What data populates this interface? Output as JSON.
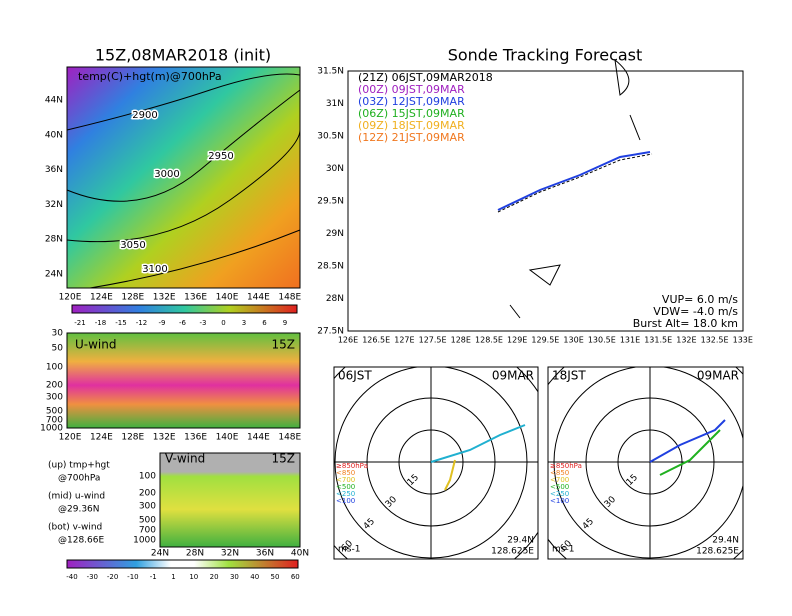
{
  "left_top": {
    "title": "15Z,08MAR2018 (init)",
    "label": "temp(C)+hgt(m)@700hPa",
    "lat_labels": [
      "44N",
      "40N",
      "36N",
      "32N",
      "28N",
      "24N"
    ],
    "lon_labels": [
      "120E",
      "124E",
      "128E",
      "132E",
      "136E",
      "140E",
      "144E",
      "148E"
    ],
    "contour_labels": [
      "2900",
      "2950",
      "3000",
      "3050",
      "3100"
    ],
    "colorbar_labels": [
      "-21",
      "-18",
      "-15",
      "-12",
      "-9",
      "-6",
      "-3",
      "0",
      "3",
      "6",
      "9"
    ]
  },
  "u_wind": {
    "label": "U-wind",
    "time": "15Z",
    "p_labels": [
      "30",
      "50",
      "100",
      "200",
      "300",
      "500",
      "700",
      "1000"
    ],
    "lon_labels": [
      "120E",
      "124E",
      "128E",
      "132E",
      "136E",
      "140E",
      "144E",
      "148E"
    ]
  },
  "v_wind": {
    "label": "V-wind",
    "time": "15Z",
    "p_labels": [
      "100",
      "200",
      "300",
      "500",
      "700",
      "1000"
    ],
    "lat_labels": [
      "24N",
      "28N",
      "32N",
      "36N",
      "40N"
    ]
  },
  "notes": [
    "(up) tmp+hgt",
    "@700hPa",
    "(mid) u-wind",
    "@29.36N",
    "(bot) v-wind",
    "@128.66E"
  ],
  "bottom_colorbar": [
    "-40",
    "-30",
    "-20",
    "-10",
    "-1",
    "1",
    "10",
    "20",
    "30",
    "40",
    "50",
    "60"
  ],
  "track": {
    "title": "Sonde Tracking Forecast",
    "lat_labels": [
      "31.5N",
      "31N",
      "30.5N",
      "30N",
      "29.5N",
      "29N",
      "28.5N",
      "28N",
      "27.5N"
    ],
    "lon_labels": [
      "126E",
      "126.5E",
      "127E",
      "127.5E",
      "128E",
      "128.5E",
      "129E",
      "129.5E",
      "130E",
      "130.5E",
      "131E",
      "131.5E",
      "132E",
      "132.5E",
      "133E"
    ],
    "legend": [
      {
        "text": "(21Z) 06JST,09MAR2018",
        "color": "#000000"
      },
      {
        "text": "(00Z) 09JST,09MAR",
        "color": "#a020c0"
      },
      {
        "text": "(03Z) 12JST,09MAR",
        "color": "#2040e0"
      },
      {
        "text": "(06Z) 15JST,09MAR",
        "color": "#20b020"
      },
      {
        "text": "(09Z) 18JST,09MAR",
        "color": "#f0b020"
      },
      {
        "text": "(12Z) 21JST,09MAR",
        "color": "#f07820"
      }
    ],
    "info": [
      "VUP= 6.0 m/s",
      "VDW= -4.0 m/s",
      "Burst Alt= 18.0 km"
    ]
  },
  "polar": [
    {
      "time": "06JST",
      "date": "09MAR",
      "lat": "29.4N",
      "lon": "128.625E",
      "unit": "ms-1",
      "ring_labels": [
        "15",
        "30",
        "45",
        "60"
      ],
      "levels": [
        {
          "text": "≥850hPa",
          "color": "#e02020"
        },
        {
          "text": "<850",
          "color": "#f08020"
        },
        {
          "text": "<700",
          "color": "#e0c020"
        },
        {
          "text": "<500",
          "color": "#20b020"
        },
        {
          "text": "<250",
          "color": "#20b0d0"
        },
        {
          "text": "<100",
          "color": "#2040e0"
        }
      ]
    },
    {
      "time": "18JST",
      "date": "09MAR",
      "lat": "29.4N",
      "lon": "128.625E",
      "unit": "ms-1",
      "ring_labels": [
        "15",
        "30",
        "45",
        "60"
      ],
      "levels": [
        {
          "text": "≥850hPa",
          "color": "#e02020"
        },
        {
          "text": "<850",
          "color": "#f08020"
        },
        {
          "text": "<700",
          "color": "#e0c020"
        },
        {
          "text": "<500",
          "color": "#20b020"
        },
        {
          "text": "<250",
          "color": "#20b0d0"
        },
        {
          "text": "<100",
          "color": "#2040e0"
        }
      ]
    }
  ]
}
